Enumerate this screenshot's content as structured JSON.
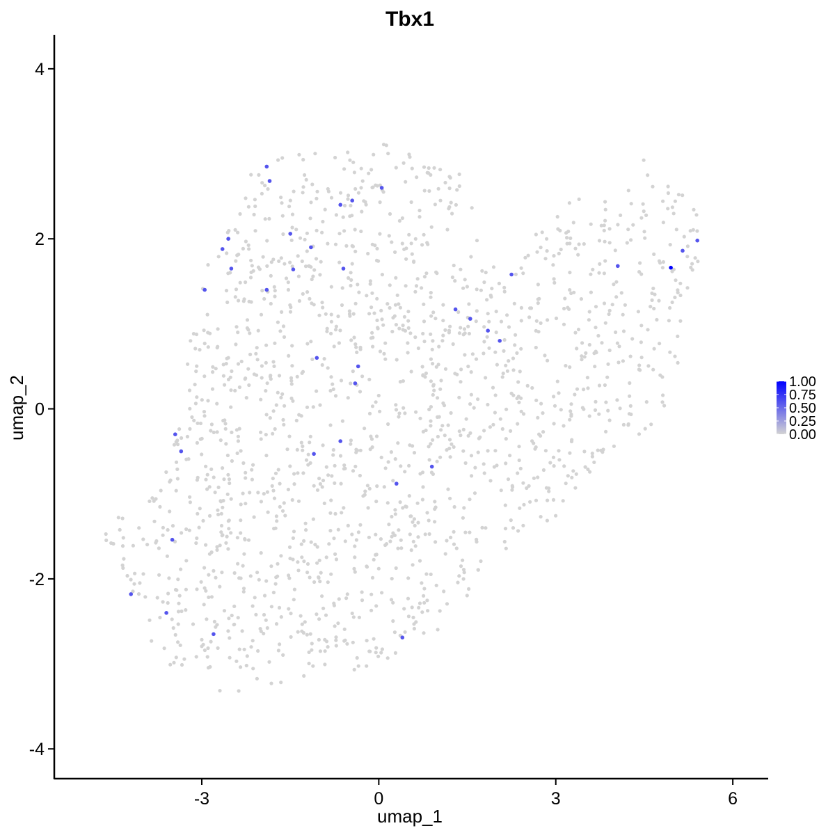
{
  "chart_data": {
    "type": "scatter",
    "title": "Tbx1",
    "xlabel": "umap_1",
    "ylabel": "umap_2",
    "xlim": [
      -5.5,
      6.6
    ],
    "ylim": [
      -4.35,
      4.4
    ],
    "x_ticks": [
      -3,
      0,
      3,
      6
    ],
    "y_ticks": [
      -4,
      -2,
      0,
      2,
      4
    ],
    "x_tick_labels": [
      "-3",
      "0",
      "3",
      "6"
    ],
    "y_tick_labels": [
      "-4",
      "-2",
      "0",
      "2",
      "4"
    ],
    "grid": false,
    "color_scale": {
      "low": "#D3D3D3",
      "high": "#0000FF",
      "min": 0,
      "max": 1,
      "ticks": [
        0,
        0.25,
        0.5,
        0.75,
        1
      ],
      "tick_labels": [
        "0.00",
        "0.25",
        "0.50",
        "0.75",
        "1.00"
      ],
      "legend_position": "right"
    },
    "expressed_points": [
      {
        "x": -1.9,
        "y": 2.85,
        "value": 0.6
      },
      {
        "x": -1.85,
        "y": 2.68,
        "value": 0.6
      },
      {
        "x": -0.65,
        "y": 2.4,
        "value": 0.6
      },
      {
        "x": -0.45,
        "y": 2.45,
        "value": 0.6
      },
      {
        "x": 0.05,
        "y": 2.6,
        "value": 0.6
      },
      {
        "x": -2.55,
        "y": 2.0,
        "value": 0.6
      },
      {
        "x": -2.65,
        "y": 1.88,
        "value": 0.6
      },
      {
        "x": -1.5,
        "y": 2.06,
        "value": 0.6
      },
      {
        "x": -1.15,
        "y": 1.9,
        "value": 0.6
      },
      {
        "x": -2.5,
        "y": 1.65,
        "value": 0.6
      },
      {
        "x": -1.45,
        "y": 1.64,
        "value": 0.6
      },
      {
        "x": -0.6,
        "y": 1.65,
        "value": 0.6
      },
      {
        "x": -2.95,
        "y": 1.4,
        "value": 0.6
      },
      {
        "x": -1.9,
        "y": 1.4,
        "value": 0.6
      },
      {
        "x": 1.3,
        "y": 1.17,
        "value": 0.6
      },
      {
        "x": 1.55,
        "y": 1.06,
        "value": 0.6
      },
      {
        "x": 1.85,
        "y": 0.92,
        "value": 0.6
      },
      {
        "x": 2.05,
        "y": 0.8,
        "value": 0.6
      },
      {
        "x": 2.25,
        "y": 1.58,
        "value": 0.6
      },
      {
        "x": 4.05,
        "y": 1.68,
        "value": 0.6
      },
      {
        "x": 4.95,
        "y": 1.66,
        "value": 1.0
      },
      {
        "x": 5.15,
        "y": 1.86,
        "value": 0.6
      },
      {
        "x": 5.4,
        "y": 1.98,
        "value": 0.6
      },
      {
        "x": -1.05,
        "y": 0.6,
        "value": 0.6
      },
      {
        "x": -0.35,
        "y": 0.5,
        "value": 0.6
      },
      {
        "x": -0.4,
        "y": 0.3,
        "value": 0.6
      },
      {
        "x": -3.45,
        "y": -0.3,
        "value": 0.6
      },
      {
        "x": -3.35,
        "y": -0.5,
        "value": 0.6
      },
      {
        "x": -1.1,
        "y": -0.53,
        "value": 0.6
      },
      {
        "x": -0.65,
        "y": -0.38,
        "value": 0.6
      },
      {
        "x": 0.9,
        "y": -0.68,
        "value": 0.6
      },
      {
        "x": 0.3,
        "y": -0.88,
        "value": 0.6
      },
      {
        "x": -3.5,
        "y": -1.54,
        "value": 0.6
      },
      {
        "x": -4.2,
        "y": -2.18,
        "value": 0.6
      },
      {
        "x": -3.6,
        "y": -2.4,
        "value": 0.6
      },
      {
        "x": -2.8,
        "y": -2.65,
        "value": 0.6
      },
      {
        "x": 0.4,
        "y": -2.69,
        "value": 0.6
      }
    ]
  }
}
